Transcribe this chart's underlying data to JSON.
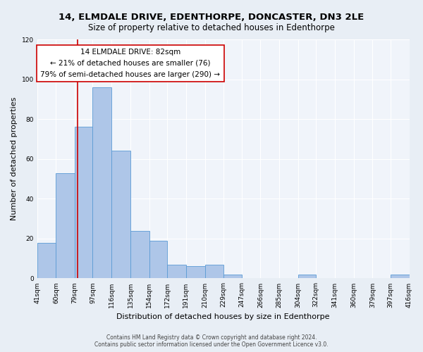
{
  "title": "14, ELMDALE DRIVE, EDENTHORPE, DONCASTER, DN3 2LE",
  "subtitle": "Size of property relative to detached houses in Edenthorpe",
  "xlabel": "Distribution of detached houses by size in Edenthorpe",
  "ylabel": "Number of detached properties",
  "footer_line1": "Contains HM Land Registry data © Crown copyright and database right 2024.",
  "footer_line2": "Contains public sector information licensed under the Open Government Licence v3.0.",
  "bin_edges": [
    41,
    60,
    79,
    97,
    116,
    135,
    154,
    172,
    191,
    210,
    229,
    247,
    266,
    285,
    304,
    322,
    341,
    360,
    379,
    397,
    416
  ],
  "bar_heights": [
    18,
    53,
    76,
    96,
    64,
    24,
    19,
    7,
    6,
    7,
    2,
    0,
    0,
    0,
    2,
    0,
    0,
    0,
    0,
    2
  ],
  "bar_color": "#aec6e8",
  "bar_edge_color": "#5b9bd5",
  "property_size": 82,
  "redline_color": "#cc0000",
  "annotation_box_color": "#cc0000",
  "annotation_text_line1": "14 ELMDALE DRIVE: 82sqm",
  "annotation_text_line2": "← 21% of detached houses are smaller (76)",
  "annotation_text_line3": "79% of semi-detached houses are larger (290) →",
  "ylim": [
    0,
    120
  ],
  "yticks": [
    0,
    20,
    40,
    60,
    80,
    100,
    120
  ],
  "bg_color": "#e8eef5",
  "plot_bg_color": "#f0f4fa",
  "grid_color": "#ffffff",
  "title_fontsize": 9.5,
  "subtitle_fontsize": 8.5,
  "axis_label_fontsize": 8,
  "tick_fontsize": 6.5,
  "annotation_fontsize": 7.5
}
